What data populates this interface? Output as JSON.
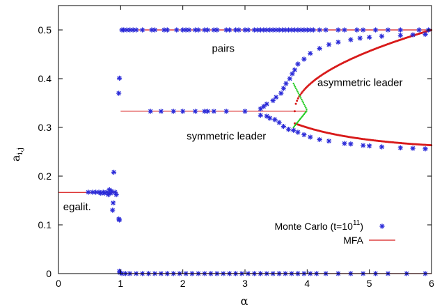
{
  "chart_data": {
    "type": "scatter",
    "xlabel": "α",
    "ylabel": "a",
    "ylabel_sub": "i,j",
    "xlim": [
      0,
      6
    ],
    "ylim": [
      0,
      0.55
    ],
    "xticks": [
      "0",
      "1",
      "2",
      "3",
      "4",
      "5",
      "6"
    ],
    "yticks": [
      "0",
      "0.1",
      "0.2",
      "0.3",
      "0.4",
      "0.5"
    ],
    "legend_position": "bottom-right",
    "colors": {
      "mc": "#2b2bd8",
      "mfa": "#d81a1a",
      "mfa_unstable": "#22cc22"
    },
    "annotations": [
      {
        "text": "pairs",
        "x": 2.65,
        "y": 0.455
      },
      {
        "text": "asymmetric leader",
        "x": 4.85,
        "y": 0.385
      },
      {
        "text": "symmetric leader",
        "x": 2.7,
        "y": 0.275
      },
      {
        "text": "egalit.",
        "x": 0.3,
        "y": 0.13
      }
    ],
    "series": [
      {
        "name": "Monte Carlo (t=10",
        "name_sup": "11",
        "name_end": ")",
        "marker": "star",
        "points": [
          [
            0.48,
            0.167
          ],
          [
            0.55,
            0.167
          ],
          [
            0.6,
            0.167
          ],
          [
            0.65,
            0.167
          ],
          [
            0.68,
            0.165
          ],
          [
            0.72,
            0.167
          ],
          [
            0.74,
            0.165
          ],
          [
            0.78,
            0.167
          ],
          [
            0.8,
            0.162
          ],
          [
            0.82,
            0.172
          ],
          [
            0.84,
            0.165
          ],
          [
            0.85,
            0.169
          ],
          [
            0.87,
            0.13
          ],
          [
            0.88,
            0.145
          ],
          [
            0.89,
            0.208
          ],
          [
            0.91,
            0.167
          ],
          [
            0.93,
            0.162
          ],
          [
            0.97,
            0.112
          ],
          [
            0.98,
            0.11
          ],
          [
            0.97,
            0.37
          ],
          [
            0.98,
            0.401
          ],
          [
            0.98,
            0.005
          ],
          [
            0.99,
            0.002
          ],
          [
            1.02,
            0.5
          ],
          [
            1.05,
            0.5
          ],
          [
            1.1,
            0.5
          ],
          [
            1.15,
            0.5
          ],
          [
            1.2,
            0.5
          ],
          [
            1.25,
            0.5
          ],
          [
            1.35,
            0.5
          ],
          [
            1.5,
            0.5
          ],
          [
            1.55,
            0.5
          ],
          [
            1.7,
            0.5
          ],
          [
            1.75,
            0.5
          ],
          [
            1.9,
            0.5
          ],
          [
            2.0,
            0.5
          ],
          [
            2.05,
            0.5
          ],
          [
            2.1,
            0.5
          ],
          [
            2.2,
            0.5
          ],
          [
            2.25,
            0.5
          ],
          [
            2.35,
            0.5
          ],
          [
            2.4,
            0.5
          ],
          [
            2.5,
            0.5
          ],
          [
            2.55,
            0.5
          ],
          [
            2.7,
            0.5
          ],
          [
            2.75,
            0.5
          ],
          [
            2.85,
            0.5
          ],
          [
            2.9,
            0.5
          ],
          [
            3.0,
            0.5
          ],
          [
            3.05,
            0.5
          ],
          [
            3.15,
            0.5
          ],
          [
            3.2,
            0.5
          ],
          [
            3.25,
            0.5
          ],
          [
            3.3,
            0.5
          ],
          [
            3.35,
            0.5
          ],
          [
            3.4,
            0.5
          ],
          [
            3.45,
            0.5
          ],
          [
            3.5,
            0.5
          ],
          [
            3.55,
            0.5
          ],
          [
            3.6,
            0.5
          ],
          [
            3.65,
            0.5
          ],
          [
            3.7,
            0.5
          ],
          [
            3.75,
            0.5
          ],
          [
            3.8,
            0.5
          ],
          [
            3.85,
            0.5
          ],
          [
            3.9,
            0.5
          ],
          [
            3.95,
            0.5
          ],
          [
            4.0,
            0.5
          ],
          [
            4.05,
            0.5
          ],
          [
            4.1,
            0.5
          ],
          [
            4.2,
            0.5
          ],
          [
            4.3,
            0.5
          ],
          [
            4.5,
            0.5
          ],
          [
            4.6,
            0.5
          ],
          [
            4.8,
            0.5
          ],
          [
            4.9,
            0.5
          ],
          [
            5.1,
            0.5
          ],
          [
            5.3,
            0.5
          ],
          [
            5.5,
            0.5
          ],
          [
            5.8,
            0.5
          ],
          [
            5.95,
            0.5
          ],
          [
            1.02,
            0.0
          ],
          [
            1.08,
            0.0
          ],
          [
            1.15,
            0.0
          ],
          [
            1.25,
            0.0
          ],
          [
            1.35,
            0.0
          ],
          [
            1.45,
            0.0
          ],
          [
            1.55,
            0.0
          ],
          [
            1.65,
            0.0
          ],
          [
            1.75,
            0.0
          ],
          [
            1.85,
            0.0
          ],
          [
            1.95,
            0.0
          ],
          [
            2.05,
            0.0
          ],
          [
            2.15,
            0.0
          ],
          [
            2.25,
            0.0
          ],
          [
            2.35,
            0.0
          ],
          [
            2.45,
            0.0
          ],
          [
            2.55,
            0.0
          ],
          [
            2.65,
            0.0
          ],
          [
            2.75,
            0.0
          ],
          [
            2.85,
            0.0
          ],
          [
            2.95,
            0.0
          ],
          [
            3.05,
            0.0
          ],
          [
            3.15,
            0.0
          ],
          [
            3.25,
            0.0
          ],
          [
            3.35,
            0.0
          ],
          [
            3.45,
            0.0
          ],
          [
            3.55,
            0.0
          ],
          [
            3.65,
            0.0
          ],
          [
            3.75,
            0.0
          ],
          [
            3.85,
            0.0
          ],
          [
            3.95,
            0.0
          ],
          [
            4.05,
            0.0
          ],
          [
            4.15,
            0.0
          ],
          [
            4.3,
            0.0
          ],
          [
            4.5,
            0.0
          ],
          [
            4.7,
            0.0
          ],
          [
            4.9,
            0.0
          ],
          [
            5.1,
            0.0
          ],
          [
            5.3,
            0.0
          ],
          [
            5.6,
            0.0
          ],
          [
            5.9,
            0.0
          ],
          [
            1.48,
            0.333
          ],
          [
            1.65,
            0.333
          ],
          [
            1.85,
            0.333
          ],
          [
            2.0,
            0.333
          ],
          [
            2.2,
            0.333
          ],
          [
            2.35,
            0.333
          ],
          [
            2.4,
            0.333
          ],
          [
            2.5,
            0.333
          ],
          [
            2.7,
            0.333
          ],
          [
            3.0,
            0.333
          ],
          [
            3.25,
            0.338
          ],
          [
            3.3,
            0.343
          ],
          [
            3.35,
            0.348
          ],
          [
            3.45,
            0.355
          ],
          [
            3.5,
            0.362
          ],
          [
            3.58,
            0.37
          ],
          [
            3.62,
            0.38
          ],
          [
            3.66,
            0.39
          ],
          [
            3.72,
            0.4
          ],
          [
            3.76,
            0.41
          ],
          [
            3.8,
            0.418
          ],
          [
            3.25,
            0.325
          ],
          [
            3.35,
            0.323
          ],
          [
            3.4,
            0.319
          ],
          [
            3.48,
            0.316
          ],
          [
            3.55,
            0.31
          ],
          [
            3.62,
            0.302
          ],
          [
            3.7,
            0.296
          ],
          [
            3.78,
            0.294
          ],
          [
            3.85,
            0.29
          ],
          [
            3.95,
            0.285
          ],
          [
            4.05,
            0.28
          ],
          [
            4.2,
            0.275
          ],
          [
            4.35,
            0.272
          ],
          [
            4.6,
            0.267
          ],
          [
            4.7,
            0.266
          ],
          [
            4.9,
            0.263
          ],
          [
            5.0,
            0.262
          ],
          [
            5.2,
            0.26
          ],
          [
            5.5,
            0.258
          ],
          [
            5.7,
            0.257
          ],
          [
            5.9,
            0.256
          ],
          [
            3.85,
            0.43
          ],
          [
            3.95,
            0.44
          ],
          [
            4.05,
            0.452
          ],
          [
            4.2,
            0.462
          ],
          [
            4.35,
            0.47
          ],
          [
            4.5,
            0.475
          ],
          [
            4.7,
            0.48
          ],
          [
            4.85,
            0.483
          ],
          [
            5.0,
            0.485
          ],
          [
            5.2,
            0.487
          ],
          [
            5.5,
            0.489
          ],
          [
            5.7,
            0.49
          ],
          [
            5.9,
            0.491
          ]
        ]
      },
      {
        "name": "MFA",
        "segments": [
          {
            "x": [
              0.0,
              0.95
            ],
            "y": [
              0.1667,
              0.1667
            ]
          },
          {
            "x": [
              1.0,
              6.0
            ],
            "y": [
              0.5,
              0.5
            ]
          },
          {
            "x": [
              1.0,
              4.0
            ],
            "y": [
              0.3333,
              0.3333
            ]
          },
          {
            "x": [
              1.0,
              6.0
            ],
            "y": [
              0.0,
              0.0
            ]
          }
        ]
      }
    ]
  }
}
